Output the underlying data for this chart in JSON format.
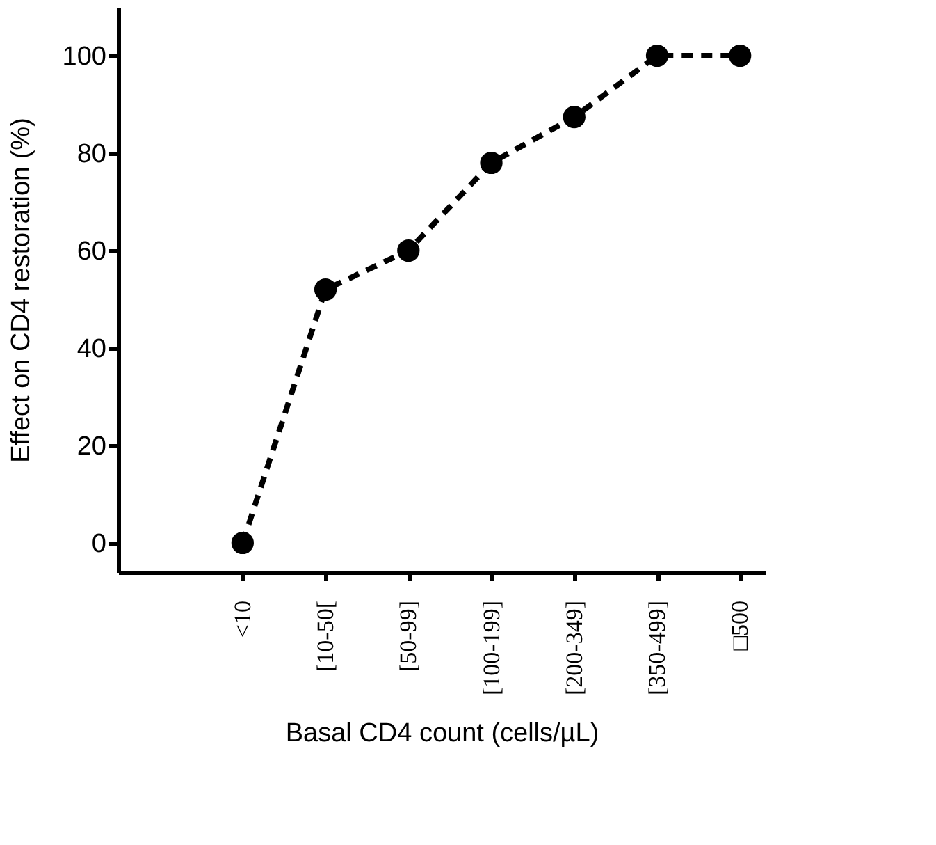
{
  "chart_data": {
    "type": "line",
    "xlabel": "Basal CD4 count (cells/µL)",
    "ylabel": "Effect on CD4 restoration (%)",
    "categories": [
      "<10",
      "[10-50[",
      "[50-99]",
      "[100-199]",
      "[200-349]",
      "[350-499]",
      "□500"
    ],
    "series": [
      {
        "color": "#000000",
        "values": [
          0,
          52,
          60,
          78,
          87.4,
          100,
          100
        ]
      }
    ],
    "ylim": [
      -6,
      110
    ],
    "yticks": [
      0,
      20,
      40,
      60,
      80,
      100
    ],
    "marker": "circle",
    "line_style": "dashed",
    "grid": false
  }
}
